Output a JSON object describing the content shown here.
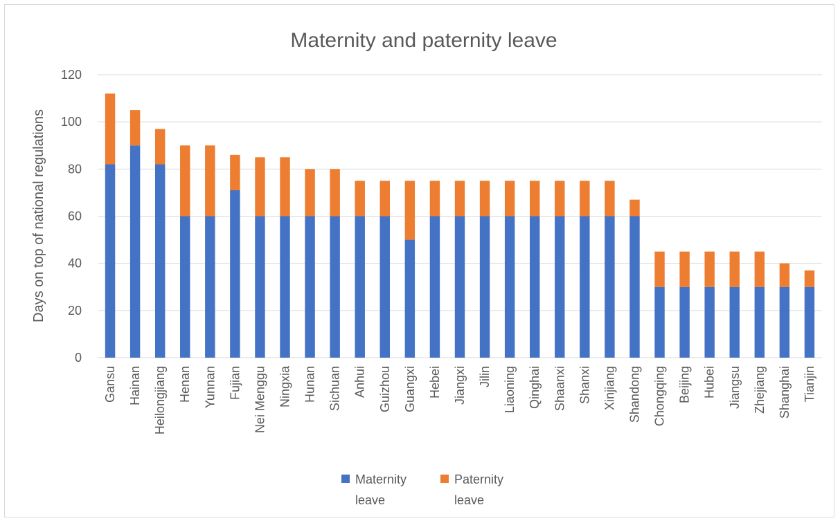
{
  "chart_data": {
    "type": "bar",
    "stacked": true,
    "title": "Maternity and paternity leave",
    "xlabel": "",
    "ylabel": "Days on top of national regulations",
    "ylim": [
      0,
      120
    ],
    "yticks": [
      0,
      20,
      40,
      60,
      80,
      100,
      120
    ],
    "grid": true,
    "legend_position": "bottom",
    "categories": [
      "Gansu",
      "Hainan",
      "Heilongjiang",
      "Henan",
      "Yunnan",
      "Fujian",
      "Nei Menggu",
      "Ningxia",
      "Hunan",
      "Sichuan",
      "Anhui",
      "Guizhou",
      "Guangxi",
      "Hebei",
      "Jiangxi",
      "Jilin",
      "Liaoning",
      "Qinghai",
      "Shaanxi",
      "Shanxi",
      "Xinjiang",
      "Shandong",
      "Chongqing",
      "Beijing",
      "Hubei",
      "Jiangsu",
      "Zhejiang",
      "Shanghai",
      "Tianjin"
    ],
    "series": [
      {
        "name": "Maternity leave",
        "color": "#4472C4",
        "values": [
          82,
          90,
          82,
          60,
          60,
          71,
          60,
          60,
          60,
          60,
          60,
          60,
          50,
          60,
          60,
          60,
          60,
          60,
          60,
          60,
          60,
          60,
          30,
          30,
          30,
          30,
          30,
          30,
          30
        ]
      },
      {
        "name": "Paternity leave",
        "color": "#ED7D31",
        "values": [
          30,
          15,
          15,
          30,
          30,
          15,
          25,
          25,
          20,
          20,
          15,
          15,
          25,
          15,
          15,
          15,
          15,
          15,
          15,
          15,
          15,
          7,
          15,
          15,
          15,
          15,
          15,
          10,
          7
        ]
      }
    ],
    "legend": [
      {
        "line1": "Maternity",
        "line2": "leave"
      },
      {
        "line1": "Paternity",
        "line2": "leave"
      }
    ]
  }
}
